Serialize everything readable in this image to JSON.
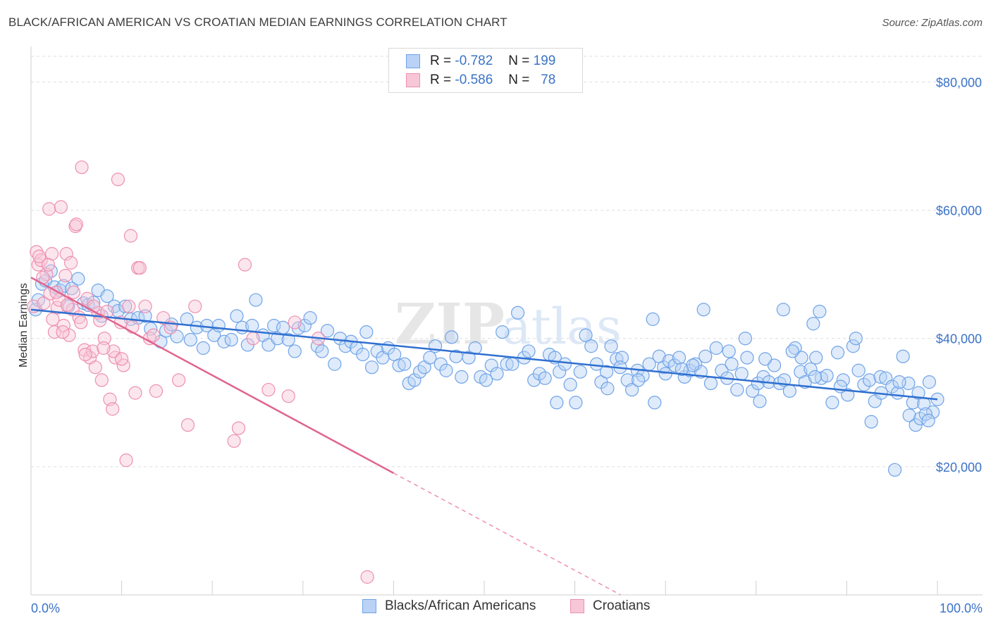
{
  "title": "BLACK/AFRICAN AMERICAN VS CROATIAN MEDIAN EARNINGS CORRELATION CHART",
  "source": "Source: ZipAtlas.com",
  "watermark": {
    "zip": "ZIP",
    "atlas": "atlas"
  },
  "legend": {
    "r_label": "R =",
    "n_label": "N =",
    "rows": [
      {
        "r": "-0.782",
        "n": "199",
        "color": "#6fa3e8",
        "fill": "#b9d2f5"
      },
      {
        "r": "-0.586",
        "n": "78",
        "color": "#ee8fb0",
        "fill": "#f8c7d7"
      }
    ]
  },
  "bottom_legend": [
    {
      "label": "Blacks/African Americans",
      "color": "#6fa3e8",
      "fill": "#b9d2f5"
    },
    {
      "label": "Croatians",
      "color": "#ee8fb0",
      "fill": "#f8c7d7"
    }
  ],
  "chart_data": {
    "type": "scatter",
    "title": "BLACK/AFRICAN AMERICAN VS CROATIAN MEDIAN EARNINGS CORRELATION CHART",
    "xlabel": "",
    "ylabel": "Median Earnings",
    "xlim": [
      0,
      100
    ],
    "ylim": [
      0,
      84000
    ],
    "x_tick_labels": [
      "0.0%",
      "100.0%"
    ],
    "y_ticks": [
      20000,
      40000,
      60000,
      80000
    ],
    "y_tick_labels": [
      "$20,000",
      "$40,000",
      "$60,000",
      "$80,000"
    ],
    "grid": "horizontal dashed",
    "legend_position": "top-center",
    "series": [
      {
        "name": "Blacks/African Americans",
        "color": "#6fa3e8",
        "trend": {
          "x0": 0,
          "y0": 44500,
          "x1": 100,
          "y1": 30500
        },
        "points": [
          [
            0.5,
            44500
          ],
          [
            0.8,
            46000
          ],
          [
            1.2,
            48500
          ],
          [
            1.6,
            49000
          ],
          [
            2.2,
            50500
          ],
          [
            2.6,
            48000
          ],
          [
            3.2,
            47500
          ],
          [
            3.6,
            48200
          ],
          [
            4.1,
            45000
          ],
          [
            4.5,
            47800
          ],
          [
            5.2,
            49300
          ],
          [
            5.8,
            45500
          ],
          [
            6.3,
            45200
          ],
          [
            6.9,
            45600
          ],
          [
            7.4,
            47500
          ],
          [
            7.8,
            43500
          ],
          [
            8.4,
            46600
          ],
          [
            9.2,
            45000
          ],
          [
            9.6,
            44300
          ],
          [
            10.4,
            45000
          ],
          [
            11.0,
            43000
          ],
          [
            11.8,
            43200
          ],
          [
            12.6,
            43500
          ],
          [
            13.2,
            41500
          ],
          [
            14.3,
            39500
          ],
          [
            14.9,
            41200
          ],
          [
            15.5,
            42200
          ],
          [
            16.1,
            40300
          ],
          [
            17.2,
            43000
          ],
          [
            17.6,
            39800
          ],
          [
            18.3,
            41700
          ],
          [
            19.0,
            38500
          ],
          [
            19.4,
            42000
          ],
          [
            20.2,
            40500
          ],
          [
            20.7,
            42000
          ],
          [
            21.3,
            39500
          ],
          [
            22.1,
            39800
          ],
          [
            22.7,
            43500
          ],
          [
            23.3,
            41700
          ],
          [
            23.9,
            39000
          ],
          [
            24.4,
            42000
          ],
          [
            24.8,
            46000
          ],
          [
            25.6,
            40500
          ],
          [
            26.2,
            39000
          ],
          [
            26.8,
            42000
          ],
          [
            27.2,
            40000
          ],
          [
            27.8,
            41700
          ],
          [
            28.4,
            39800
          ],
          [
            29.1,
            38000
          ],
          [
            29.5,
            41600
          ],
          [
            30.2,
            42000
          ],
          [
            30.8,
            43200
          ],
          [
            31.6,
            38800
          ],
          [
            32.1,
            38000
          ],
          [
            32.7,
            41200
          ],
          [
            33.5,
            36000
          ],
          [
            34.1,
            40000
          ],
          [
            34.7,
            38800
          ],
          [
            35.3,
            39500
          ],
          [
            35.9,
            38500
          ],
          [
            36.6,
            37500
          ],
          [
            37.0,
            41000
          ],
          [
            37.6,
            35500
          ],
          [
            38.2,
            38000
          ],
          [
            38.8,
            37000
          ],
          [
            39.4,
            38500
          ],
          [
            40.1,
            37500
          ],
          [
            40.6,
            35800
          ],
          [
            41.2,
            36000
          ],
          [
            41.7,
            33000
          ],
          [
            42.3,
            33500
          ],
          [
            42.9,
            34800
          ],
          [
            43.4,
            35500
          ],
          [
            44.0,
            37000
          ],
          [
            44.6,
            38800
          ],
          [
            45.2,
            36000
          ],
          [
            45.8,
            35000
          ],
          [
            46.4,
            40200
          ],
          [
            46.9,
            37200
          ],
          [
            47.5,
            34000
          ],
          [
            48.3,
            37000
          ],
          [
            49.0,
            38500
          ],
          [
            49.6,
            34000
          ],
          [
            50.2,
            33500
          ],
          [
            50.8,
            35800
          ],
          [
            51.4,
            34500
          ],
          [
            52.0,
            41000
          ],
          [
            52.5,
            36000
          ],
          [
            53.1,
            36000
          ],
          [
            53.7,
            44000
          ],
          [
            54.4,
            37000
          ],
          [
            54.9,
            38000
          ],
          [
            55.5,
            33500
          ],
          [
            56.1,
            34500
          ],
          [
            56.7,
            33800
          ],
          [
            57.2,
            37500
          ],
          [
            57.8,
            37000
          ],
          [
            58.3,
            34800
          ],
          [
            58.9,
            36000
          ],
          [
            59.5,
            32800
          ],
          [
            60.1,
            30000
          ],
          [
            60.6,
            34800
          ],
          [
            61.2,
            40500
          ],
          [
            61.8,
            38800
          ],
          [
            62.4,
            36000
          ],
          [
            62.9,
            33200
          ],
          [
            63.5,
            34800
          ],
          [
            64.0,
            38800
          ],
          [
            64.6,
            36800
          ],
          [
            65.2,
            37000
          ],
          [
            65.8,
            33500
          ],
          [
            66.3,
            32000
          ],
          [
            66.9,
            35000
          ],
          [
            67.5,
            34200
          ],
          [
            68.2,
            36000
          ],
          [
            68.6,
            43000
          ],
          [
            69.3,
            37200
          ],
          [
            69.8,
            35500
          ],
          [
            70.4,
            36500
          ],
          [
            71.0,
            35800
          ],
          [
            71.5,
            37000
          ],
          [
            72.1,
            34000
          ],
          [
            72.7,
            35000
          ],
          [
            73.3,
            36000
          ],
          [
            73.9,
            34800
          ],
          [
            74.4,
            37200
          ],
          [
            75.0,
            33000
          ],
          [
            75.6,
            38500
          ],
          [
            76.2,
            35000
          ],
          [
            76.8,
            33800
          ],
          [
            77.3,
            36000
          ],
          [
            77.9,
            32000
          ],
          [
            78.4,
            34500
          ],
          [
            79.0,
            37000
          ],
          [
            79.6,
            31800
          ],
          [
            80.2,
            33000
          ],
          [
            80.8,
            34000
          ],
          [
            81.4,
            33200
          ],
          [
            82.0,
            35800
          ],
          [
            82.6,
            33000
          ],
          [
            83.1,
            33500
          ],
          [
            83.7,
            31800
          ],
          [
            84.3,
            38500
          ],
          [
            84.9,
            34800
          ],
          [
            85.4,
            33200
          ],
          [
            86.0,
            35200
          ],
          [
            86.6,
            37000
          ],
          [
            87.2,
            33800
          ],
          [
            87.8,
            34200
          ],
          [
            88.4,
            30000
          ],
          [
            89.0,
            37800
          ],
          [
            89.6,
            33500
          ],
          [
            90.1,
            31200
          ],
          [
            90.7,
            38800
          ],
          [
            91.3,
            35000
          ],
          [
            91.9,
            32800
          ],
          [
            92.5,
            33500
          ],
          [
            93.1,
            30200
          ],
          [
            93.7,
            34000
          ],
          [
            94.3,
            33800
          ],
          [
            95.0,
            32500
          ],
          [
            95.6,
            31500
          ],
          [
            96.2,
            37200
          ],
          [
            96.8,
            33000
          ],
          [
            97.3,
            30000
          ],
          [
            97.9,
            31500
          ],
          [
            98.5,
            29800
          ],
          [
            99.1,
            33200
          ],
          [
            99.5,
            28500
          ],
          [
            100.0,
            30500
          ],
          [
            74.2,
            44500
          ],
          [
            86.3,
            42300
          ],
          [
            87.0,
            44200
          ],
          [
            85.0,
            37000
          ],
          [
            80.4,
            30200
          ],
          [
            68.8,
            30000
          ],
          [
            63.6,
            32200
          ],
          [
            58.0,
            30000
          ],
          [
            91.0,
            40000
          ],
          [
            92.7,
            27000
          ],
          [
            95.8,
            33200
          ],
          [
            96.9,
            28000
          ],
          [
            97.6,
            26500
          ],
          [
            98.1,
            27500
          ],
          [
            98.7,
            28200
          ],
          [
            99.0,
            27200
          ],
          [
            95.3,
            19500
          ],
          [
            93.8,
            31500
          ],
          [
            83.0,
            44500
          ],
          [
            77.0,
            38000
          ],
          [
            78.8,
            40000
          ],
          [
            81.0,
            36800
          ],
          [
            84.0,
            38000
          ],
          [
            86.5,
            34000
          ],
          [
            89.3,
            32500
          ],
          [
            73.0,
            35800
          ],
          [
            71.8,
            35200
          ],
          [
            70.0,
            34500
          ],
          [
            67.0,
            33500
          ],
          [
            65.0,
            35500
          ]
        ]
      },
      {
        "name": "Croatians",
        "color": "#ee8fb0",
        "trend": {
          "x0": 0,
          "y0": 49500,
          "x1": 40,
          "y1": 19000,
          "dash_to_x": 100,
          "dash_to_y": -26500
        },
        "points": [
          [
            0.3,
            45000
          ],
          [
            0.6,
            53500
          ],
          [
            0.8,
            51500
          ],
          [
            1.1,
            52200
          ],
          [
            1.4,
            45500
          ],
          [
            1.7,
            50000
          ],
          [
            2.0,
            60200
          ],
          [
            2.3,
            53200
          ],
          [
            2.6,
            41000
          ],
          [
            2.9,
            44800
          ],
          [
            3.3,
            60500
          ],
          [
            3.6,
            42000
          ],
          [
            3.9,
            53200
          ],
          [
            4.2,
            40500
          ],
          [
            4.6,
            44500
          ],
          [
            4.9,
            57500
          ],
          [
            5.3,
            43300
          ],
          [
            5.6,
            66700
          ],
          [
            5.9,
            38200
          ],
          [
            6.2,
            46200
          ],
          [
            6.5,
            37000
          ],
          [
            6.8,
            38000
          ],
          [
            7.1,
            35500
          ],
          [
            7.4,
            44000
          ],
          [
            7.8,
            33500
          ],
          [
            8.1,
            40000
          ],
          [
            8.4,
            44200
          ],
          [
            8.7,
            30500
          ],
          [
            9.0,
            29000
          ],
          [
            9.3,
            37000
          ],
          [
            9.6,
            64800
          ],
          [
            9.9,
            42500
          ],
          [
            10.2,
            35800
          ],
          [
            10.5,
            21000
          ],
          [
            10.8,
            45000
          ],
          [
            11.2,
            41800
          ],
          [
            11.5,
            31500
          ],
          [
            11.8,
            51000
          ],
          [
            12.6,
            45000
          ],
          [
            13.1,
            40000
          ],
          [
            13.8,
            31800
          ],
          [
            14.6,
            43200
          ],
          [
            15.4,
            41700
          ],
          [
            16.3,
            33500
          ],
          [
            17.3,
            26500
          ],
          [
            18.1,
            45000
          ],
          [
            22.4,
            24000
          ],
          [
            22.9,
            26000
          ],
          [
            23.6,
            51500
          ],
          [
            24.5,
            40000
          ],
          [
            26.2,
            32000
          ],
          [
            28.4,
            31000
          ],
          [
            29.1,
            42500
          ],
          [
            31.7,
            40000
          ],
          [
            37.1,
            2800
          ],
          [
            0.9,
            52800
          ],
          [
            1.3,
            49500
          ],
          [
            2.1,
            47000
          ],
          [
            3.1,
            46000
          ],
          [
            4.0,
            45200
          ],
          [
            4.4,
            51800
          ],
          [
            5.0,
            57800
          ],
          [
            6.0,
            37500
          ],
          [
            7.6,
            42800
          ],
          [
            9.1,
            38000
          ],
          [
            10.0,
            36800
          ],
          [
            2.4,
            43000
          ],
          [
            3.5,
            41000
          ],
          [
            5.5,
            42500
          ],
          [
            8.0,
            38500
          ],
          [
            12.0,
            51000
          ],
          [
            1.9,
            51500
          ],
          [
            2.8,
            47200
          ],
          [
            3.8,
            49800
          ],
          [
            4.7,
            47200
          ],
          [
            6.9,
            45000
          ],
          [
            11.0,
            56000
          ],
          [
            13.5,
            40500
          ]
        ]
      }
    ]
  }
}
